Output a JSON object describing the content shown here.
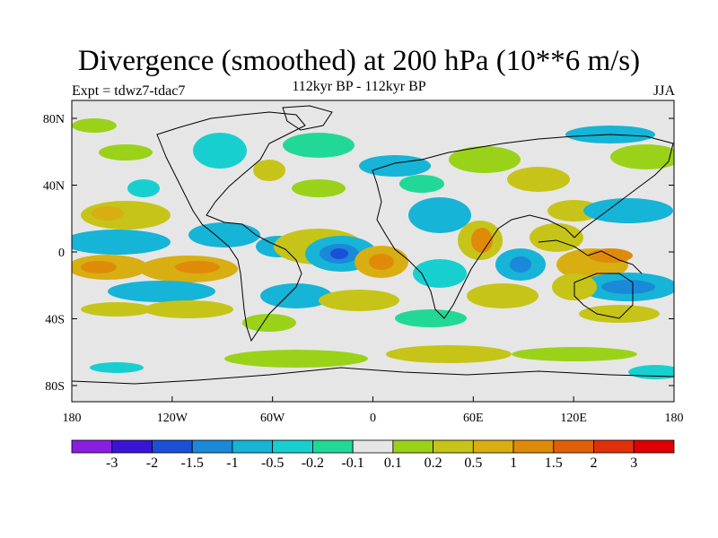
{
  "title": "Divergence (smoothed) at 200 hPa (10**6 m/s)",
  "subtitle": "112kyr BP - 112kyr BP",
  "experiment": "Expt = tdwz7-tdac7",
  "season": "JJA",
  "map": {
    "projection": "cylindrical-equidistant",
    "lon_range": [
      -180,
      180
    ],
    "lat_range": [
      -90,
      90
    ],
    "y_ticks": [
      "80N",
      "40N",
      "0",
      "40S",
      "80S"
    ],
    "x_ticks": [
      "180",
      "120W",
      "60W",
      "0",
      "60E",
      "120E",
      "180"
    ],
    "coastlines": true
  },
  "colorbar": {
    "labels": [
      "-3",
      "-2",
      "-1.5",
      "-1",
      "-0.5",
      "-0.2",
      "-0.1",
      "0.1",
      "0.2",
      "0.5",
      "1",
      "1.5",
      "2",
      "3"
    ],
    "colors": [
      "#8a1ee0",
      "#3a14d6",
      "#1a50d8",
      "#1a8ad8",
      "#16b4d6",
      "#18cfd0",
      "#22d898",
      "#e6e6e6",
      "#9ad21a",
      "#c6c418",
      "#d8ae12",
      "#e08a0a",
      "#e0600a",
      "#e0300a",
      "#e00000"
    ]
  }
}
